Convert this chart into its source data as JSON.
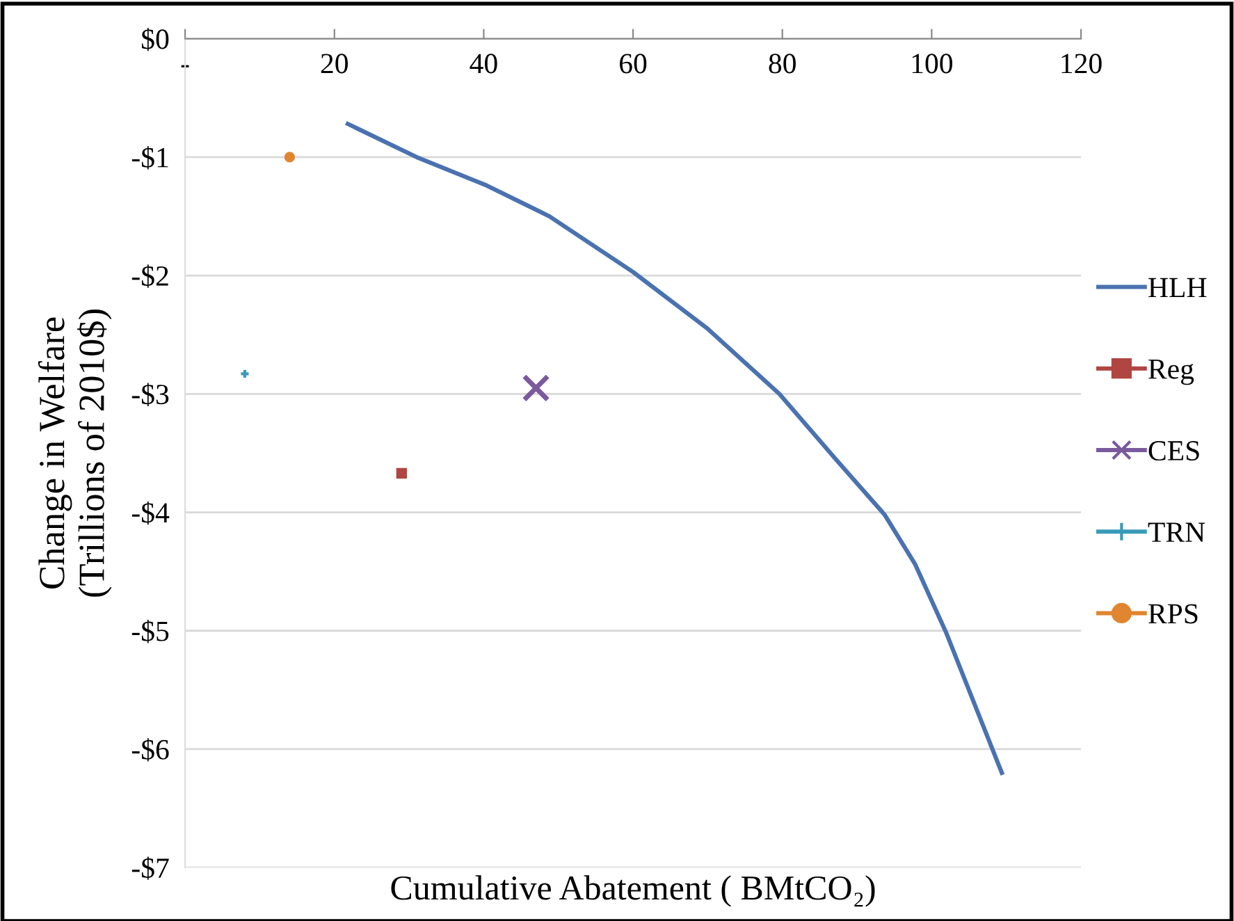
{
  "chart_data": {
    "type": "line",
    "xlabel": "Cumulative Abatement ( BMtCO₂)",
    "ylabel": "Change in Welfare\n(Trillions of 2010$)",
    "series": [
      {
        "name": "HLH",
        "color": "#4a72b0",
        "marker": "none",
        "x": [
          21.8,
          31,
          40.4,
          48.8,
          60,
          70,
          79.6,
          87.0,
          93.7,
          97.8,
          101.9,
          109.4
        ],
        "values": [
          -0.72,
          -1.0,
          -1.24,
          -1.5,
          -1.97,
          -2.45,
          -3.0,
          -3.54,
          -4.02,
          -4.44,
          -5.01,
          -6.2
        ]
      },
      {
        "name": "Reg",
        "type": "scatter",
        "color": "#b04541",
        "marker": "square",
        "x": [
          29
        ],
        "values": [
          -3.67
        ]
      },
      {
        "name": "CES",
        "type": "scatter",
        "color": "#7a5a9c",
        "marker": "cross",
        "x": [
          47
        ],
        "values": [
          -2.95
        ]
      },
      {
        "name": "TRN",
        "type": "scatter",
        "color": "#3a9ab8",
        "marker": "plus",
        "x": [
          8
        ],
        "values": [
          -2.83
        ]
      },
      {
        "name": "RPS",
        "type": "scatter",
        "color": "#e08530",
        "marker": "circle",
        "x": [
          14
        ],
        "values": [
          -1.0
        ]
      }
    ],
    "xlim": [
      0,
      120
    ],
    "xticks": [
      {
        "value": 0,
        "label": "-"
      },
      20,
      40,
      60,
      80,
      100,
      120
    ],
    "ylim": [
      -7,
      0
    ],
    "yticks": [
      {
        "value": 0,
        "label": "$0"
      },
      {
        "value": -1,
        "label": "-$1"
      },
      {
        "value": -2,
        "label": "-$2"
      },
      {
        "value": -3,
        "label": "-$3"
      },
      {
        "value": -4,
        "label": "-$4"
      },
      {
        "value": -5,
        "label": "-$5"
      },
      {
        "value": -6,
        "label": "-$6"
      },
      {
        "value": -7,
        "label": "-$7"
      }
    ],
    "grid": "y",
    "legend": "right"
  }
}
